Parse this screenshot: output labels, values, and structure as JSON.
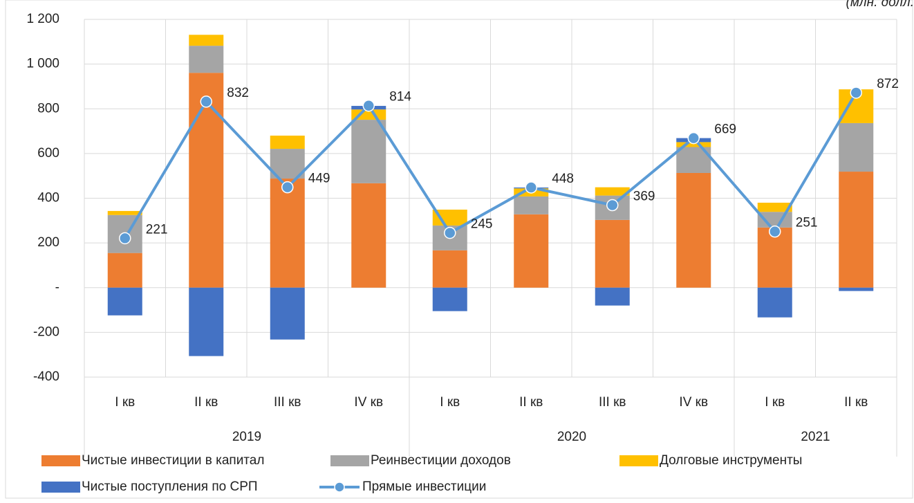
{
  "chart_data": {
    "type": "bar",
    "subtitle": "(млн. долл.",
    "categories": [
      "I кв",
      "II кв",
      "III кв",
      "IV кв",
      "I кв",
      "II кв",
      "III кв",
      "IV кв",
      "I кв",
      "II кв"
    ],
    "groups": [
      {
        "name": "2019",
        "span": 4
      },
      {
        "name": "2020",
        "span": 4
      },
      {
        "name": "2021",
        "span": 2
      }
    ],
    "series": [
      {
        "name": "Чистые инвестиции в капитал",
        "color": "#ED7D31",
        "values": [
          155,
          961,
          488,
          467,
          167,
          328,
          303,
          513,
          269,
          519
        ]
      },
      {
        "name": "Реинвестиции доходов",
        "color": "#A5A5A5",
        "values": [
          170,
          121,
          133,
          284,
          111,
          80,
          109,
          116,
          70,
          217
        ]
      },
      {
        "name": "Долговые инструменты",
        "color": "#FFC000",
        "values": [
          18,
          49,
          59,
          46,
          71,
          36,
          37,
          22,
          41,
          151
        ]
      },
      {
        "name": "Чистые поступления по СРП",
        "color": "#4472C4",
        "values": [
          -124,
          -306,
          -232,
          16,
          -105,
          4,
          -80,
          18,
          -133,
          -15
        ]
      },
      {
        "name": "Прямые инвестиции",
        "type": "line",
        "color": "#5B9BD5",
        "values": [
          221,
          832,
          449,
          814,
          245,
          448,
          369,
          669,
          251,
          872
        ]
      }
    ],
    "ylim": [
      -400,
      1200
    ],
    "yticks": [
      -400,
      -200,
      {
        "value": 0,
        "label": "-"
      },
      200,
      400,
      600,
      800,
      {
        "value": 1000,
        "label": "1 000"
      },
      {
        "value": 1200,
        "label": "1 200"
      }
    ],
    "grid": true
  }
}
